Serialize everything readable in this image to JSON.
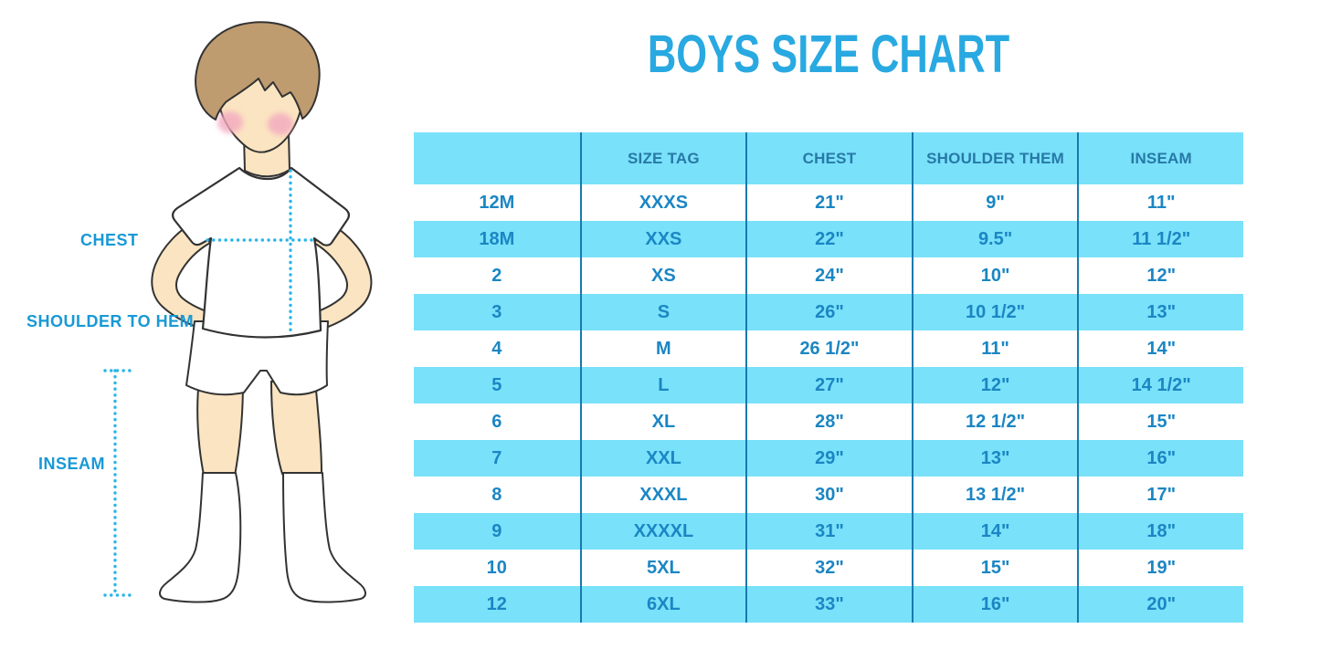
{
  "title": "BOYS SIZE CHART",
  "figure": {
    "labels": {
      "chest": "CHEST",
      "shoulder_to_hem": "SHOULDER TO HEM",
      "inseam": "INSEAM"
    }
  },
  "chart_data": {
    "type": "table",
    "title": "BOYS SIZE CHART",
    "columns": [
      "",
      "SIZE TAG",
      "CHEST",
      "SHOULDER THEM",
      "INSEAM"
    ],
    "rows": [
      [
        "12M",
        "XXXS",
        "21\"",
        "9\"",
        "11\""
      ],
      [
        "18M",
        "XXS",
        "22\"",
        "9.5\"",
        "11 1/2\""
      ],
      [
        "2",
        "XS",
        "24\"",
        "10\"",
        "12\""
      ],
      [
        "3",
        "S",
        "26\"",
        "10 1/2\"",
        "13\""
      ],
      [
        "4",
        "M",
        "26 1/2\"",
        "11\"",
        "14\""
      ],
      [
        "5",
        "L",
        "27\"",
        "12\"",
        "14 1/2\""
      ],
      [
        "6",
        "XL",
        "28\"",
        "12 1/2\"",
        "15\""
      ],
      [
        "7",
        "XXL",
        "29\"",
        "13\"",
        "16\""
      ],
      [
        "8",
        "XXXL",
        "30\"",
        "13 1/2\"",
        "17\""
      ],
      [
        "9",
        "XXXXL",
        "31\"",
        "14\"",
        "18\""
      ],
      [
        "10",
        "5XL",
        "32\"",
        "15\"",
        "19\""
      ],
      [
        "12",
        "6XL",
        "33\"",
        "16\"",
        "20\""
      ]
    ],
    "layout": {
      "zebra_rows": true,
      "first_data_row_background": "white",
      "grid": "vertical-dividers-only"
    }
  },
  "colors": {
    "title_blue": "#29a9e1",
    "label_blue": "#1899d6",
    "dotted_cyan": "#2ab5e8",
    "row_cyan": "#79e1fa",
    "divider_blue": "#1879ae",
    "header_text": "#2779a7",
    "cell_text": "#1b86c3",
    "skin": "#fbe4c1",
    "hair": "#bf9b70",
    "blush": "#f3a9bf",
    "outline": "#333333"
  }
}
